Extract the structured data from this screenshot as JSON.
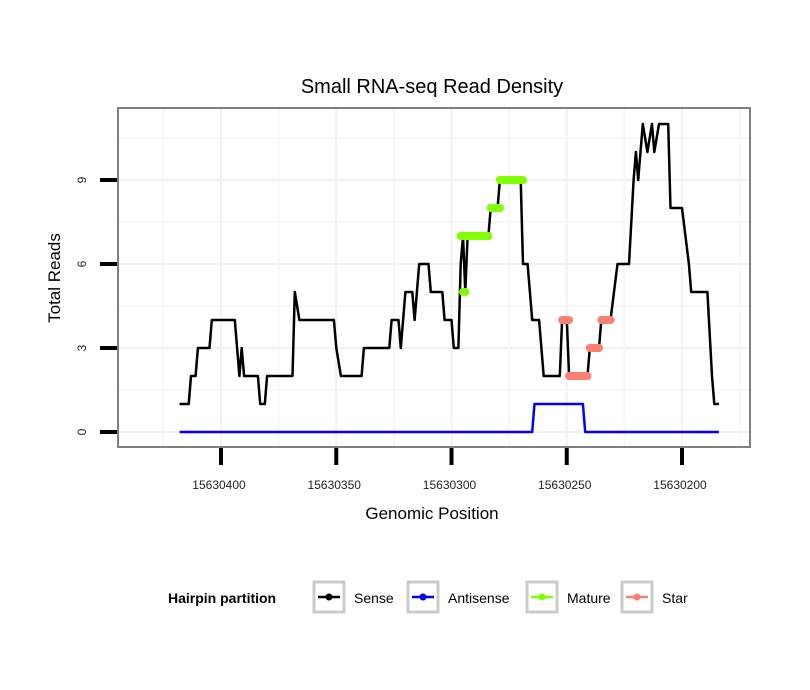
{
  "chart_data": {
    "type": "line",
    "title": "Small RNA-seq Read Density",
    "xlabel": "Genomic Position",
    "ylabel": "Total Reads",
    "x_reversed": true,
    "xlim": [
      15630435,
      15630160
    ],
    "ylim": [
      -0.6,
      11.6
    ],
    "x_ticks": [
      15630400,
      15630350,
      15630300,
      15630250,
      15630200
    ],
    "x_tick_labels": [
      "15630400",
      "15630350",
      "15630300",
      "15630250",
      "15630200"
    ],
    "y_ticks": [
      0,
      3,
      6,
      9
    ],
    "y_tick_labels": [
      "0",
      "3",
      "6",
      "9"
    ],
    "grid": true,
    "legend": {
      "title": "Hairpin partition",
      "position": "bottom",
      "entries": [
        {
          "label": "Sense",
          "color": "#000000"
        },
        {
          "label": "Antisense",
          "color": "#0000ff"
        },
        {
          "label": "Mature",
          "color": "#7fff00"
        },
        {
          "label": "Star",
          "color": "#fa8072"
        }
      ]
    },
    "series": [
      {
        "name": "Sense",
        "color": "#000000",
        "points": [
          [
            15630418,
            1
          ],
          [
            15630414,
            1
          ],
          [
            15630413,
            2
          ],
          [
            15630411,
            2
          ],
          [
            15630410,
            3
          ],
          [
            15630405,
            3
          ],
          [
            15630404,
            4
          ],
          [
            15630394,
            4
          ],
          [
            15630392,
            2
          ],
          [
            15630391,
            3
          ],
          [
            15630390,
            2
          ],
          [
            15630384,
            2
          ],
          [
            15630383,
            1
          ],
          [
            15630381,
            1
          ],
          [
            15630380,
            2
          ],
          [
            15630369,
            2
          ],
          [
            15630368,
            5
          ],
          [
            15630366,
            4
          ],
          [
            15630351,
            4
          ],
          [
            15630350,
            3
          ],
          [
            15630348,
            2
          ],
          [
            15630339,
            2
          ],
          [
            15630338,
            3
          ],
          [
            15630327,
            3
          ],
          [
            15630326,
            4
          ],
          [
            15630323,
            4
          ],
          [
            15630322,
            3
          ],
          [
            15630320,
            5
          ],
          [
            15630317,
            5
          ],
          [
            15630316,
            4
          ],
          [
            15630314,
            6
          ],
          [
            15630310,
            6
          ],
          [
            15630309,
            5
          ],
          [
            15630304,
            5
          ],
          [
            15630303,
            4
          ],
          [
            15630300,
            4
          ],
          [
            15630299,
            3
          ],
          [
            15630297,
            3
          ],
          [
            15630296,
            6
          ],
          [
            15630295,
            7
          ],
          [
            15630294,
            5
          ],
          [
            15630293,
            7
          ],
          [
            15630284,
            7
          ],
          [
            15630283,
            8
          ],
          [
            15630280,
            8
          ],
          [
            15630279,
            9
          ],
          [
            15630270,
            9
          ],
          [
            15630269,
            6
          ],
          [
            15630267,
            6
          ],
          [
            15630265,
            4
          ],
          [
            15630262,
            4
          ],
          [
            15630261,
            3
          ],
          [
            15630260,
            2
          ],
          [
            15630253,
            2
          ],
          [
            15630252,
            4
          ],
          [
            15630250,
            4
          ],
          [
            15630249,
            2
          ],
          [
            15630241,
            2
          ],
          [
            15630240,
            3
          ],
          [
            15630236,
            3
          ],
          [
            15630235,
            4
          ],
          [
            15630231,
            4
          ],
          [
            15630228,
            6
          ],
          [
            15630223,
            6
          ],
          [
            15630221,
            9
          ],
          [
            15630220,
            10
          ],
          [
            15630219,
            9
          ],
          [
            15630217,
            11
          ],
          [
            15630215,
            10
          ],
          [
            15630213,
            11
          ],
          [
            15630212,
            10
          ],
          [
            15630210,
            11
          ],
          [
            15630206,
            11
          ],
          [
            15630205,
            8
          ],
          [
            15630200,
            8
          ],
          [
            15630197,
            6
          ],
          [
            15630196,
            5
          ],
          [
            15630189,
            5
          ],
          [
            15630187,
            2
          ],
          [
            15630186,
            1
          ],
          [
            15630184,
            1
          ]
        ]
      },
      {
        "name": "Antisense",
        "color": "#0000ff",
        "points": [
          [
            15630418,
            0
          ],
          [
            15630265,
            0
          ],
          [
            15630264,
            1
          ],
          [
            15630243,
            1
          ],
          [
            15630242,
            0
          ],
          [
            15630184,
            0
          ]
        ]
      },
      {
        "name": "Mature",
        "color": "#7fff00",
        "segments": [
          {
            "x": [
              15630296,
              15630295
            ],
            "y": 7
          },
          {
            "x": [
              15630295,
              15630294
            ],
            "y": 5
          },
          {
            "x": [
              15630294,
              15630284
            ],
            "y": 7
          },
          {
            "x": [
              15630283,
              15630279
            ],
            "y": 8
          },
          {
            "x": [
              15630279,
              15630269
            ],
            "y": 9
          }
        ]
      },
      {
        "name": "Star",
        "color": "#fa8072",
        "segments": [
          {
            "x": [
              15630252,
              15630249
            ],
            "y": 4
          },
          {
            "x": [
              15630249,
              15630241
            ],
            "y": 2
          },
          {
            "x": [
              15630240,
              15630236
            ],
            "y": 3
          },
          {
            "x": [
              15630235,
              15630231
            ],
            "y": 4
          }
        ]
      }
    ]
  }
}
